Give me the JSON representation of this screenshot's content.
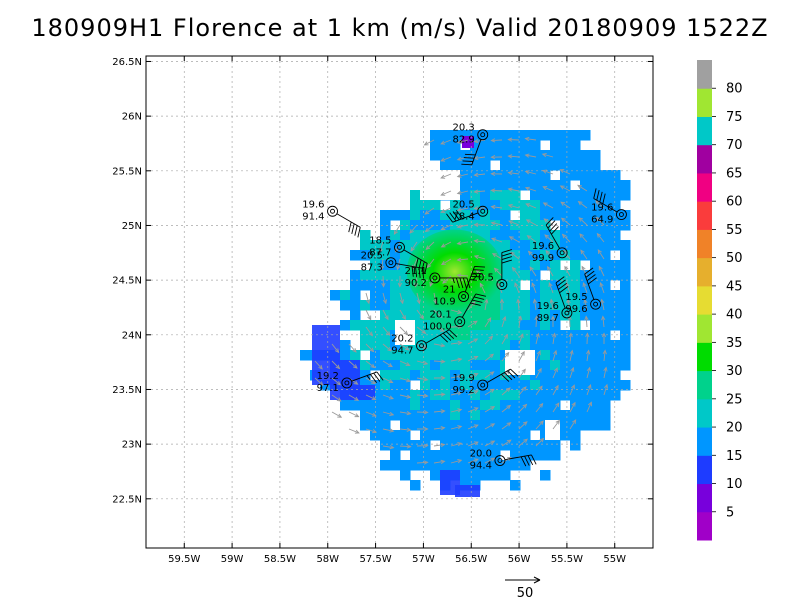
{
  "title": "180909H1 Florence at 1 km (m/s) Valid 20180909  1522Z",
  "map": {
    "lat_labels": [
      {
        "lat": 26.5,
        "label": "26.5N"
      },
      {
        "lat": 26.0,
        "label": "26N"
      },
      {
        "lat": 25.5,
        "label": "25.5N"
      },
      {
        "lat": 25.0,
        "label": "25N"
      },
      {
        "lat": 24.5,
        "label": "24.5N"
      },
      {
        "lat": 24.0,
        "label": "24N"
      },
      {
        "lat": 23.5,
        "label": "23.5N"
      },
      {
        "lat": 23.0,
        "label": "23N"
      },
      {
        "lat": 22.5,
        "label": "22.5N"
      }
    ],
    "lon_labels": [
      {
        "lon": -59.5,
        "label": "59.5W"
      },
      {
        "lon": -59.0,
        "label": "59W"
      },
      {
        "lon": -58.5,
        "label": "58.5W"
      },
      {
        "lon": -58.0,
        "label": "58W"
      },
      {
        "lon": -57.5,
        "label": "57.5W"
      },
      {
        "lon": -57.0,
        "label": "57W"
      },
      {
        "lon": -56.5,
        "label": "56.5W"
      },
      {
        "lon": -56.0,
        "label": "56W"
      },
      {
        "lon": -55.5,
        "label": "55.5W"
      },
      {
        "lon": -55.0,
        "label": "55W"
      }
    ],
    "center": {
      "lat": 24.35,
      "lon": -56.62
    },
    "observations": [
      {
        "lat": 25.83,
        "lon": -56.38,
        "speed": "20.3",
        "pressure": "82.9",
        "dir": 200,
        "kt": 40
      },
      {
        "lat": 25.13,
        "lon": -56.38,
        "speed": "20.5",
        "pressure": "78.4",
        "dir": 250,
        "kt": 40
      },
      {
        "lat": 25.1,
        "lon": -54.93,
        "speed": "19.6",
        "pressure": "64.9",
        "dir": 300,
        "kt": 40
      },
      {
        "lat": 25.13,
        "lon": -57.95,
        "speed": "19.6",
        "pressure": "91.4",
        "dir": 120,
        "kt": 40
      },
      {
        "lat": 24.8,
        "lon": -57.25,
        "speed": "18.5",
        "pressure": "87.7",
        "dir": 120,
        "kt": 40
      },
      {
        "lat": 24.66,
        "lon": -57.34,
        "speed": "20.5",
        "pressure": "87.3",
        "dir": 100,
        "kt": 40
      },
      {
        "lat": 24.75,
        "lon": -55.55,
        "speed": "19.6",
        "pressure": "99.9",
        "dir": 330,
        "kt": 40
      },
      {
        "lat": 24.52,
        "lon": -56.88,
        "speed": "21.1",
        "pressure": "90.2",
        "dir": 90,
        "kt": 45
      },
      {
        "lat": 24.46,
        "lon": -56.18,
        "speed": "20.5",
        "pressure": "",
        "dir": 0,
        "kt": 40
      },
      {
        "lat": 24.28,
        "lon": -55.2,
        "speed": "19.5",
        "pressure": "99.6",
        "dir": 340,
        "kt": 40
      },
      {
        "lat": 24.2,
        "lon": -55.5,
        "speed": "19.6",
        "pressure": "89.7",
        "dir": 340,
        "kt": 40
      },
      {
        "lat": 24.35,
        "lon": -56.58,
        "speed": "21",
        "pressure": "10.9",
        "dir": 20,
        "kt": 45
      },
      {
        "lat": 24.12,
        "lon": -56.62,
        "speed": "20.1",
        "pressure": "100.0",
        "dir": 30,
        "kt": 40
      },
      {
        "lat": 23.9,
        "lon": -57.02,
        "speed": "20.2",
        "pressure": "94.7",
        "dir": 60,
        "kt": 40
      },
      {
        "lat": 23.56,
        "lon": -57.8,
        "speed": "19.2",
        "pressure": "97.1",
        "dir": 70,
        "kt": 35
      },
      {
        "lat": 23.54,
        "lon": -56.38,
        "speed": "19.9",
        "pressure": "99.2",
        "dir": 60,
        "kt": 40
      },
      {
        "lat": 22.85,
        "lon": -56.2,
        "speed": "20.0",
        "pressure": "94.4",
        "dir": 80,
        "kt": 40
      }
    ]
  },
  "colorbar": {
    "labels": [
      "5",
      "10",
      "15",
      "20",
      "25",
      "30",
      "35",
      "40",
      "45",
      "50",
      "55",
      "60",
      "65",
      "70",
      "75",
      "80"
    ],
    "colors": [
      "#a000c8",
      "#7800dc",
      "#1e3cff",
      "#0096ff",
      "#00c8c8",
      "#00d28c",
      "#00dc00",
      "#a0e632",
      "#e6dc32",
      "#e6af2d",
      "#f08228",
      "#fa3c3c",
      "#f00082",
      "#a000a0",
      "#00c8c8",
      "#a0e632",
      "#a0a0a0"
    ]
  },
  "scale": {
    "label": "50"
  }
}
